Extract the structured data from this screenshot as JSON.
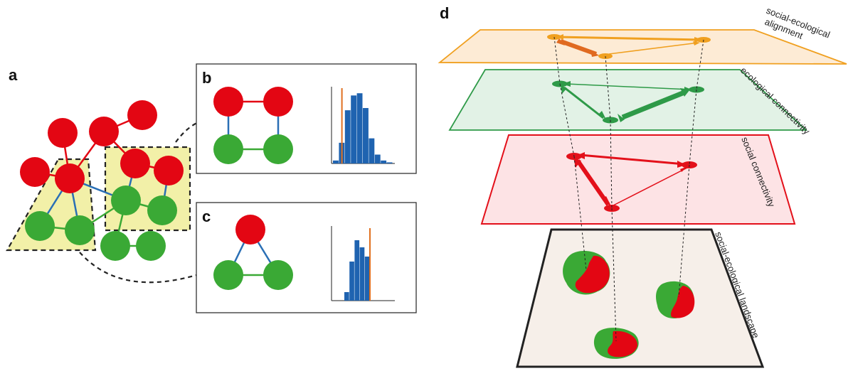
{
  "panels": {
    "a": "a",
    "b": "b",
    "c": "c",
    "d": "d"
  },
  "layers": {
    "alignment": "social-ecological",
    "alignment_line2": "alignment",
    "ecological": "ecological connectivity",
    "social": "social connectivity",
    "landscape": "social-ecological landscape"
  },
  "colors": {
    "social": "#e30613",
    "ecological": "#3aa935",
    "tie_mixed": "#2a6fb5",
    "histogram": "#1f63b0",
    "observed_line": "#e07020",
    "highlight_fill": "#f2f0a8",
    "alignment_plane": "#fdebd5",
    "alignment_edge": "#f0a020",
    "ecological_plane": "#e2f2e6",
    "ecological_edge": "#2e9a48",
    "social_plane": "#fde3e5",
    "social_edge": "#e3101a",
    "landscape_plane": "#f6efe9",
    "landscape_edge": "#222222"
  },
  "chart_data": [
    {
      "type": "bar",
      "panel": "b",
      "values": [
        0.04,
        0.28,
        0.72,
        0.92,
        0.95,
        0.75,
        0.34,
        0.12,
        0.04,
        0.015
      ],
      "observed_bin": 1.5
    },
    {
      "type": "bar",
      "panel": "c",
      "values": [
        0.12,
        0.55,
        0.85,
        0.75,
        0.62
      ],
      "observed_bin": 5.0
    }
  ]
}
